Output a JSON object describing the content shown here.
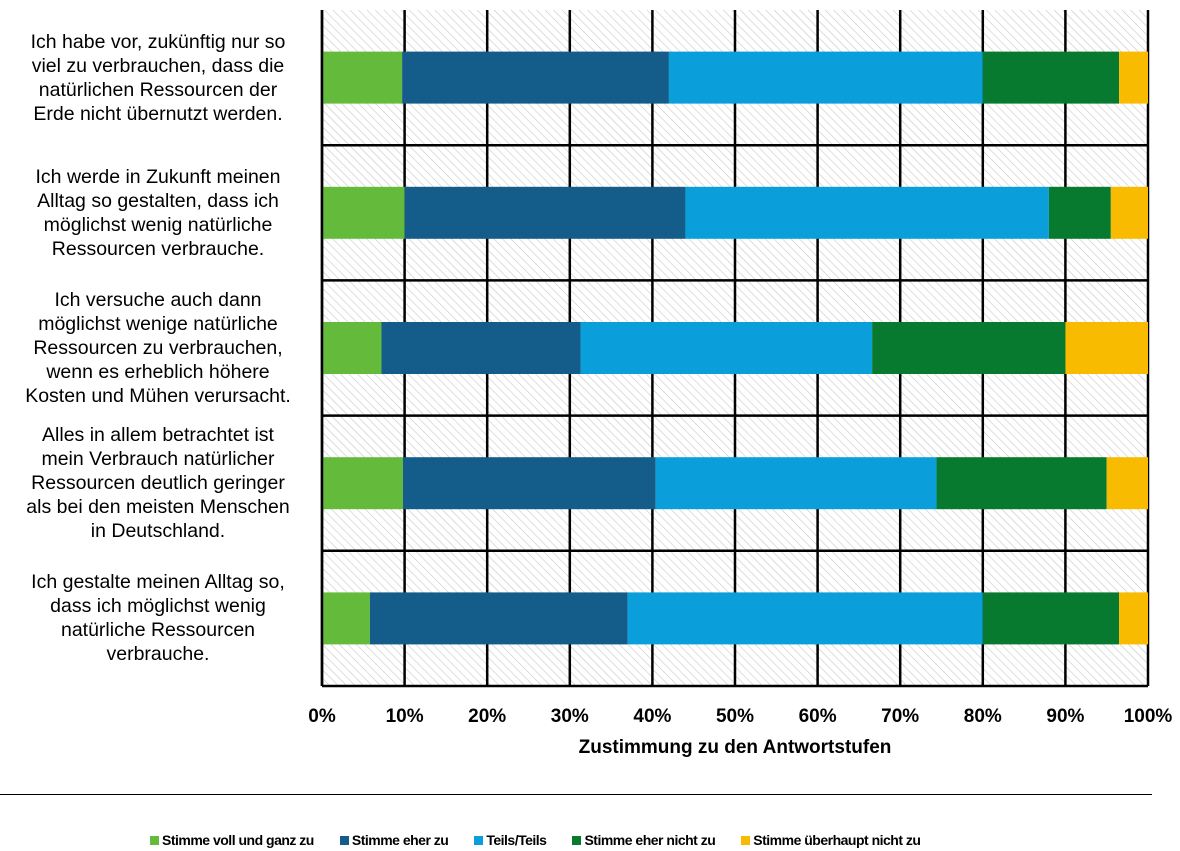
{
  "chart_data": {
    "type": "bar",
    "orientation": "horizontal",
    "stacked": true,
    "categories": [
      "Ich habe vor, zukünftig nur so\nviel zu verbrauchen, dass die\nnatürlichen Ressourcen der\nErde nicht übernutzt werden.",
      "Ich werde in Zukunft meinen\nAlltag so gestalten, dass ich\nmöglichst wenig natürliche\nRessourcen verbrauche.",
      "Ich versuche auch dann\nmöglichst wenige natürliche\nRessourcen zu verbrauchen,\nwenn es erheblich höhere\nKosten und Mühen verursacht.",
      "Alles in allem betrachtet ist\nmein Verbrauch natürlicher\nRessourcen deutlich geringer\nals bei den meisten Menschen\nin Deutschland.",
      "Ich gestalte meinen Alltag so,\ndass ich möglichst wenig\nnatürliche Ressourcen\nverbrauche."
    ],
    "series": [
      {
        "name": "Stimme voll und ganz zu",
        "color": "#64bb3b",
        "values": [
          9.7,
          10.0,
          7.2,
          9.8,
          5.8
        ]
      },
      {
        "name": "Stimme eher zu",
        "color": "#145d8a",
        "values": [
          32.3,
          34.0,
          24.1,
          30.6,
          31.2
        ]
      },
      {
        "name": "Teils/Teils",
        "color": "#0a9fdb",
        "values": [
          38.0,
          44.0,
          35.3,
          34.0,
          43.0
        ]
      },
      {
        "name": "Stimme eher nicht zu",
        "color": "#087a30",
        "values": [
          16.5,
          7.5,
          23.4,
          20.6,
          16.5
        ]
      },
      {
        "name": "Stimme überhaupt nicht zu",
        "color": "#f9bb00",
        "values": [
          3.5,
          4.5,
          10.0,
          5.0,
          3.5
        ]
      }
    ],
    "xlim": [
      0,
      100
    ],
    "xticks": [
      "0%",
      "10%",
      "20%",
      "30%",
      "40%",
      "50%",
      "60%",
      "70%",
      "80%",
      "90%",
      "100%"
    ],
    "xlabel": "Zustimmung zu den Antwortstufen",
    "ylabel": "",
    "title": "",
    "grid": true,
    "legend_position": "bottom"
  }
}
